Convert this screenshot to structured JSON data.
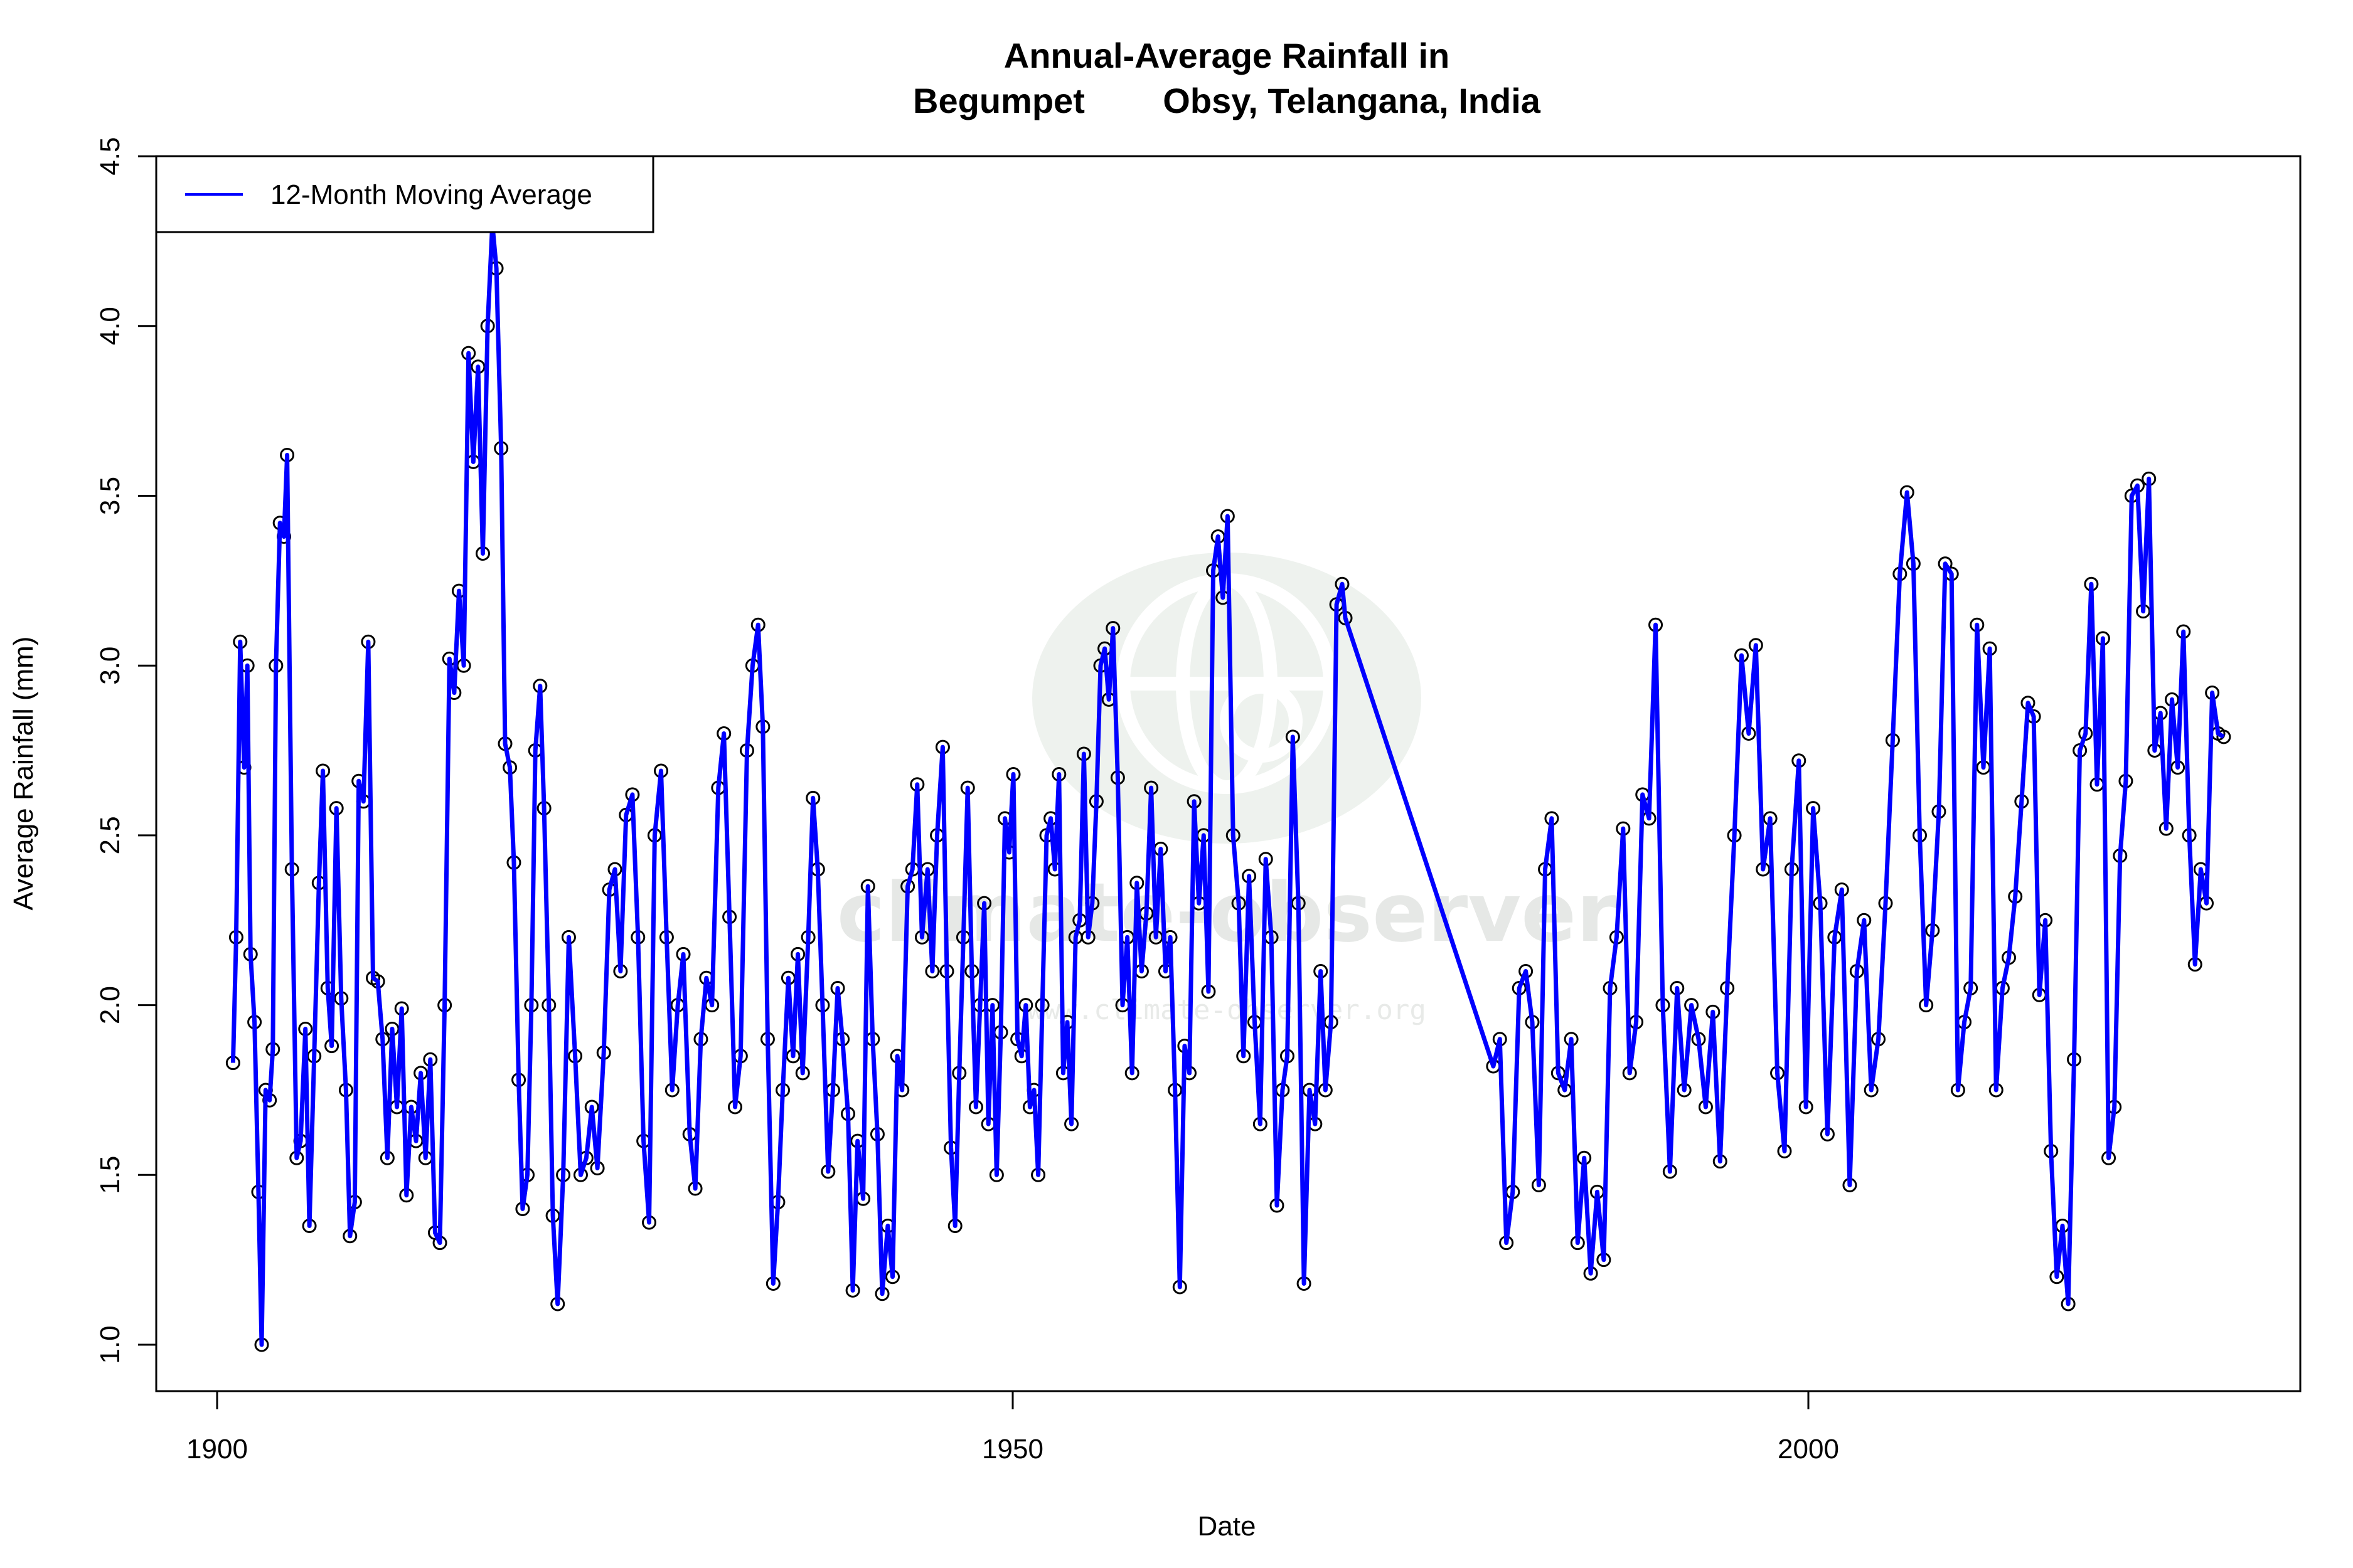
{
  "chart_data": {
    "type": "line",
    "title": "Annual-Average Rainfall in",
    "subtitle": "Begumpet        Obsy, Telangana, India",
    "xlabel": "Date",
    "ylabel": "Average Rainfall (mm)",
    "xlim": [
      1896.2,
      2030.9
    ],
    "ylim": [
      1.0,
      4.5
    ],
    "xticks": [
      1900,
      1950,
      2000
    ],
    "xtick_labels": [
      "1900",
      "1950",
      "2000"
    ],
    "yticks": [
      1.0,
      1.5,
      2.0,
      2.5,
      3.0,
      3.5,
      4.0,
      4.5
    ],
    "ytick_labels": [
      "1.0",
      "1.5",
      "2.0",
      "2.5",
      "3.0",
      "3.5",
      "4.0",
      "4.5"
    ],
    "grid": false,
    "legend": {
      "position": "top-left",
      "entries": [
        "12-Month Moving Average"
      ]
    },
    "colors": {
      "line": "#0000ff",
      "points": "#000000",
      "watermark": "#eef2ee"
    },
    "watermark": {
      "name": "climate-observer",
      "url": "www.climate-observer.org"
    },
    "series": [
      {
        "name": "12-Month Moving Average",
        "x": [
          1901.0,
          1901.2,
          1901.45,
          1901.7,
          1901.9,
          1902.1,
          1902.35,
          1902.6,
          1902.8,
          1903.05,
          1903.3,
          1903.5,
          1903.7,
          1903.95,
          1904.2,
          1904.4,
          1904.7,
          1905.0,
          1905.25,
          1905.55,
          1905.8,
          1906.1,
          1906.4,
          1906.65,
          1906.95,
          1907.2,
          1907.5,
          1907.8,
          1908.1,
          1908.35,
          1908.65,
          1908.9,
          1909.2,
          1909.5,
          1909.8,
          1910.1,
          1910.4,
          1910.7,
          1911.0,
          1911.3,
          1911.6,
          1911.9,
          1912.2,
          1912.5,
          1912.8,
          1913.1,
          1913.4,
          1913.7,
          1914.0,
          1914.3,
          1914.6,
          1914.9,
          1915.2,
          1915.5,
          1915.8,
          1916.1,
          1916.4,
          1916.7,
          1917.0,
          1917.3,
          1917.55,
          1917.85,
          1918.1,
          1918.4,
          1918.65,
          1918.95,
          1919.2,
          1919.5,
          1919.75,
          1920.0,
          1920.3,
          1920.55,
          1920.85,
          1921.1,
          1921.4,
          1921.75,
          1922.1,
          1922.5,
          1922.85,
          1923.2,
          1923.55,
          1923.9,
          1924.3,
          1924.65,
          1925.0,
          1925.35,
          1925.7,
          1926.1,
          1926.45,
          1926.8,
          1927.15,
          1927.5,
          1927.9,
          1928.25,
          1928.6,
          1928.95,
          1929.3,
          1929.7,
          1930.05,
          1930.4,
          1930.75,
          1931.1,
          1931.5,
          1931.85,
          1932.2,
          1932.55,
          1932.9,
          1933.3,
          1933.65,
          1934.0,
          1934.3,
          1934.6,
          1934.95,
          1935.25,
          1935.55,
          1935.9,
          1936.2,
          1936.5,
          1936.8,
          1937.15,
          1937.45,
          1937.75,
          1938.05,
          1938.4,
          1938.7,
          1939.0,
          1939.3,
          1939.65,
          1939.95,
          1940.25,
          1940.6,
          1940.9,
          1941.2,
          1941.5,
          1941.8,
          1942.15,
          1942.45,
          1942.75,
          1943.05,
          1943.4,
          1943.7,
          1944.0,
          1944.3,
          1944.65,
          1944.95,
          1945.25,
          1945.6,
          1945.86,
          1946.12,
          1946.38,
          1946.64,
          1946.9,
          1947.17,
          1947.43,
          1947.69,
          1947.95,
          1948.21,
          1948.47,
          1948.73,
          1948.99,
          1949.25,
          1949.51,
          1949.78,
          1950.04,
          1950.3,
          1950.56,
          1950.82,
          1951.08,
          1951.34,
          1951.6,
          1951.86,
          1952.13,
          1952.39,
          1952.65,
          1952.91,
          1953.17,
          1953.43,
          1953.69,
          1953.95,
          1954.21,
          1954.47,
          1954.74,
          1955.0,
          1955.26,
          1955.52,
          1955.78,
          1956.04,
          1956.3,
          1956.6,
          1956.9,
          1957.2,
          1957.5,
          1957.8,
          1958.1,
          1958.4,
          1958.7,
          1959.0,
          1959.3,
          1959.6,
          1959.9,
          1960.2,
          1960.5,
          1960.8,
          1961.1,
          1961.4,
          1961.7,
          1962.0,
          1962.3,
          1962.6,
          1962.9,
          1963.2,
          1963.5,
          1963.85,
          1964.2,
          1964.5,
          1964.85,
          1965.2,
          1965.55,
          1965.9,
          1966.25,
          1966.6,
          1966.95,
          1967.25,
          1967.6,
          1967.95,
          1968.3,
          1968.65,
          1969.0,
          1969.35,
          1969.65,
          1970.0,
          1970.35,
          1970.7,
          1970.9,
          1980.2,
          1980.61,
          1981.02,
          1981.42,
          1981.83,
          1982.24,
          1982.65,
          1983.06,
          1983.46,
          1983.87,
          1984.28,
          1984.69,
          1985.1,
          1985.5,
          1985.91,
          1986.32,
          1986.73,
          1987.14,
          1987.54,
          1987.95,
          1988.36,
          1988.77,
          1989.18,
          1989.58,
          1989.99,
          1990.4,
          1990.85,
          1991.3,
          1991.75,
          1992.2,
          1992.65,
          1993.1,
          1993.55,
          1994.0,
          1994.45,
          1994.9,
          1995.35,
          1995.8,
          1996.25,
          1996.7,
          1997.15,
          1997.6,
          1998.05,
          1998.5,
          1998.95,
          1999.4,
          1999.85,
          2000.3,
          2000.75,
          2001.2,
          2001.65,
          2002.1,
          2002.6,
          2003.05,
          2003.5,
          2003.95,
          2004.4,
          2004.85,
          2005.3,
          2005.75,
          2006.2,
          2006.6,
          2007.0,
          2007.4,
          2007.8,
          2008.2,
          2008.6,
          2009.0,
          2009.4,
          2009.8,
          2010.2,
          2010.6,
          2011.0,
          2011.4,
          2011.8,
          2012.2,
          2012.6,
          2013.0,
          2013.4,
          2013.8,
          2014.16,
          2014.52,
          2014.89,
          2015.25,
          2015.61,
          2015.97,
          2016.33,
          2016.7,
          2017.06,
          2017.42,
          2017.78,
          2018.14,
          2018.51,
          2018.87,
          2019.23,
          2019.59,
          2019.95,
          2020.32,
          2020.68,
          2021.04,
          2021.4,
          2021.76,
          2022.13,
          2022.49,
          2022.85,
          2023.21,
          2023.57,
          2023.94,
          2024.3,
          2024.66,
          2025.02,
          2025.38,
          2025.75,
          2026.1
        ],
        "y": [
          1.83,
          2.2,
          3.07,
          2.7,
          3.0,
          2.15,
          1.95,
          1.45,
          1.0,
          1.75,
          1.72,
          1.87,
          3.0,
          3.42,
          3.38,
          3.62,
          2.4,
          1.55,
          1.6,
          1.93,
          1.35,
          1.85,
          2.36,
          2.69,
          2.05,
          1.88,
          2.58,
          2.02,
          1.75,
          1.32,
          1.42,
          2.66,
          2.6,
          3.07,
          2.08,
          2.07,
          1.9,
          1.55,
          1.93,
          1.7,
          1.99,
          1.44,
          1.7,
          1.6,
          1.8,
          1.55,
          1.84,
          1.33,
          1.3,
          2.0,
          3.02,
          2.92,
          3.22,
          3.0,
          3.92,
          3.6,
          3.88,
          3.33,
          4.0,
          4.3,
          4.17,
          3.64,
          2.77,
          2.7,
          2.42,
          1.78,
          1.4,
          1.5,
          2.0,
          2.75,
          2.94,
          2.58,
          2.0,
          1.38,
          1.12,
          1.5,
          2.2,
          1.85,
          1.5,
          1.55,
          1.7,
          1.52,
          1.86,
          2.34,
          2.4,
          2.1,
          2.56,
          2.62,
          2.2,
          1.6,
          1.36,
          2.5,
          2.69,
          2.2,
          1.75,
          2.0,
          2.15,
          1.62,
          1.46,
          1.9,
          2.08,
          2.0,
          2.64,
          2.8,
          2.26,
          1.7,
          1.85,
          2.75,
          3.0,
          3.12,
          2.82,
          1.9,
          1.18,
          1.42,
          1.75,
          2.08,
          1.85,
          2.15,
          1.8,
          2.2,
          2.61,
          2.4,
          2.0,
          1.51,
          1.75,
          2.05,
          1.9,
          1.68,
          1.16,
          1.6,
          1.43,
          2.35,
          1.9,
          1.62,
          1.15,
          1.35,
          1.2,
          1.85,
          1.75,
          2.35,
          2.4,
          2.65,
          2.2,
          2.4,
          2.1,
          2.5,
          2.76,
          2.1,
          1.58,
          1.35,
          1.8,
          2.2,
          2.64,
          2.1,
          1.7,
          2.0,
          2.3,
          1.65,
          2.0,
          1.5,
          1.92,
          2.55,
          2.45,
          2.68,
          1.9,
          1.85,
          2.0,
          1.7,
          1.75,
          1.5,
          2.0,
          2.5,
          2.55,
          2.4,
          2.68,
          1.8,
          1.95,
          1.65,
          2.2,
          2.25,
          2.74,
          2.2,
          2.3,
          2.6,
          3.0,
          3.05,
          2.9,
          3.11,
          2.67,
          2.0,
          2.2,
          1.8,
          2.36,
          2.1,
          2.27,
          2.64,
          2.2,
          2.46,
          2.1,
          2.2,
          1.75,
          1.17,
          1.88,
          1.8,
          2.6,
          2.3,
          2.5,
          2.04,
          3.28,
          3.38,
          3.2,
          3.44,
          2.5,
          2.3,
          1.85,
          2.38,
          1.95,
          1.65,
          2.43,
          2.2,
          1.41,
          1.75,
          1.85,
          2.79,
          2.3,
          1.18,
          1.75,
          1.65,
          2.1,
          1.75,
          1.95,
          3.18,
          3.24,
          3.14,
          1.82,
          1.9,
          1.3,
          1.45,
          2.05,
          2.1,
          1.95,
          1.47,
          2.4,
          2.55,
          1.8,
          1.75,
          1.9,
          1.3,
          1.55,
          1.21,
          1.45,
          1.25,
          2.05,
          2.2,
          2.52,
          1.8,
          1.95,
          2.62,
          2.55,
          3.12,
          2.0,
          1.51,
          2.05,
          1.75,
          2.0,
          1.9,
          1.7,
          1.98,
          1.54,
          2.05,
          2.5,
          3.03,
          2.8,
          3.06,
          2.4,
          2.55,
          1.8,
          1.57,
          2.4,
          2.72,
          1.7,
          2.58,
          2.3,
          1.62,
          2.2,
          2.34,
          1.47,
          2.1,
          2.25,
          1.75,
          1.9,
          2.3,
          2.78,
          3.27,
          3.51,
          3.3,
          2.5,
          2.0,
          2.22,
          2.57,
          3.3,
          3.27,
          1.75,
          1.95,
          2.05,
          3.12,
          2.7,
          3.05,
          1.75,
          2.05,
          2.14,
          2.32,
          2.6,
          2.89,
          2.85,
          2.03,
          2.25,
          1.57,
          1.2,
          1.35,
          1.12,
          1.84,
          2.75,
          2.8,
          3.24,
          2.65,
          3.08,
          1.55,
          1.7,
          2.44,
          2.66,
          3.5,
          3.53,
          3.16,
          3.55,
          2.75,
          2.86,
          2.52,
          2.9,
          2.7,
          3.1,
          2.5,
          2.12,
          2.4,
          2.3,
          2.92,
          2.8,
          2.79
        ]
      }
    ]
  }
}
